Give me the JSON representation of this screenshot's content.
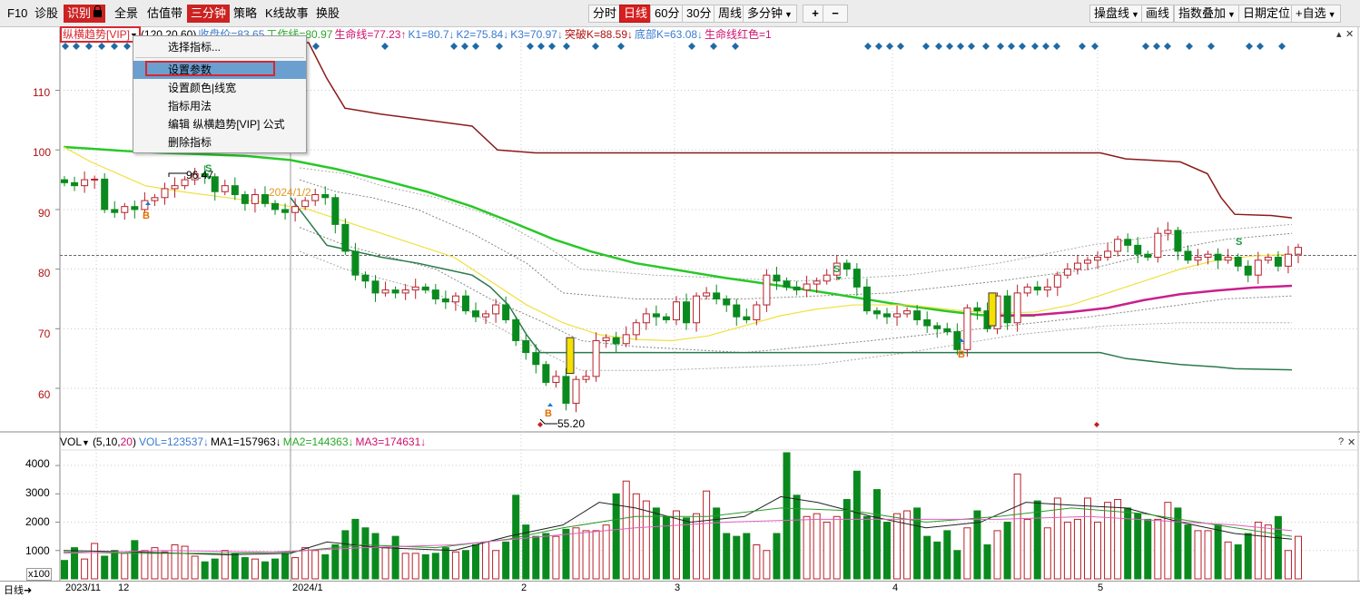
{
  "toolbar": {
    "left_items": [
      "F10",
      "诊股",
      "识别",
      "全景",
      "估值带",
      "三分钟",
      "策略",
      "K线故事",
      "换股"
    ],
    "period_tabs": [
      "分时",
      "日线",
      "60分",
      "30分",
      "周线",
      "多分钟"
    ],
    "zoom_in": "+",
    "zoom_out": "−",
    "right_items": [
      "操盘线",
      "画线",
      "指数叠加",
      "日期定位",
      "+自选"
    ]
  },
  "indicator": {
    "name": "纵横趋势[VIP]",
    "params": "(120,20,60)",
    "close_label": "收盘价=83.65",
    "hidden_text": "工作线=80.97",
    "life_line": "生命线=77.23↑",
    "k1": "K1=80.7↓",
    "k2": "K2=75.84↓",
    "k3": "K3=70.97↓",
    "breakout": "突破K=88.59↓",
    "bottom": "底部K=63.08↓",
    "life_red": "生命线红色=1"
  },
  "context_menu": {
    "items": [
      "选择指标...",
      "设置参数",
      "设置颜色|线宽",
      "指标用法",
      "编辑 纵横趋势[VIP] 公式",
      "删除指标"
    ],
    "highlighted": "设置参数"
  },
  "price_axis": {
    "labels": [
      "110",
      "100",
      "90",
      "80",
      "70",
      "60"
    ]
  },
  "annotations": {
    "high_value": "96.47",
    "low_value": "55.20",
    "date_marker": "2024/1/2",
    "buy_mark": "B",
    "sell_mark": "S"
  },
  "volume": {
    "name": "VOL",
    "params_prefix": "(5,10,",
    "params_last": "20",
    "params_suffix": ")",
    "vol": "VOL=123537↓",
    "ma1": "MA1=157963↓",
    "ma2": "MA2=144363↓",
    "ma3": "MA3=174631↓",
    "axis_labels": [
      "4000",
      "3000",
      "2000",
      "1000"
    ],
    "unit": "x100"
  },
  "date_axis": {
    "period_label": "日线",
    "labels": [
      "2023/11",
      "12",
      "2024/1",
      "2",
      "3",
      "4",
      "5"
    ]
  },
  "colors": {
    "up": "#b8202a",
    "down": "#0a8a1e",
    "upper_band": "#8b1a1a",
    "lower_band": "#2b7a4b",
    "life_line": "#28c828",
    "yellow_line": "#f0e040",
    "magenta_line": "#c8208c",
    "signal": "#1f6aa5",
    "axis_text": "#b01010"
  },
  "chart_data": {
    "type": "candlestick",
    "price_range": [
      53,
      118
    ],
    "closes": [
      94.5,
      94.0,
      95.0,
      95.1,
      90.0,
      89.5,
      90.5,
      90.0,
      91.5,
      92.0,
      93.5,
      94.0,
      95.0,
      96.0,
      95.5,
      93.0,
      94.0,
      92.5,
      91.0,
      92.5,
      91.0,
      90.0,
      89.5,
      90.5,
      91.5,
      92.5,
      92.0,
      87.5,
      83.0,
      79.0,
      78.0,
      76.0,
      76.5,
      76.0,
      76.5,
      77.0,
      76.5,
      75.0,
      74.5,
      75.5,
      73.0,
      72.0,
      72.5,
      74.0,
      71.5,
      68.0,
      66.0,
      64.0,
      61.0,
      62.0,
      57.5,
      61.5,
      62.0,
      68.0,
      68.5,
      67.5,
      69.0,
      71.0,
      72.5,
      72.0,
      71.5,
      74.5,
      71.0,
      75.5,
      76.0,
      75.0,
      74.0,
      72.0,
      71.5,
      74.0,
      79.0,
      78.0,
      77.0,
      76.5,
      77.5,
      78.0,
      79.0,
      81.0,
      80.0,
      77.0,
      73.0,
      72.5,
      72.0,
      72.5,
      73.0,
      71.5,
      70.5,
      70.0,
      69.5,
      66.5,
      73.5,
      73.0,
      70.0,
      75.5,
      71.0,
      76.0,
      77.0,
      76.5,
      77.0,
      79.0,
      80.0,
      81.0,
      81.5,
      82.0,
      83.0,
      85.0,
      84.0,
      82.5,
      82.0,
      86.0,
      86.5,
      83.0,
      81.5,
      82.0,
      82.5,
      81.5,
      82.0,
      80.5,
      79.0,
      81.5,
      82.0,
      80.5,
      82.5,
      83.65
    ],
    "volumes": [
      650,
      1100,
      700,
      1250,
      800,
      1000,
      900,
      1350,
      1000,
      1100,
      950,
      1200,
      1150,
      800,
      600,
      700,
      1000,
      900,
      750,
      700,
      600,
      700,
      900,
      750,
      1100,
      1000,
      850,
      1200,
      1700,
      2100,
      1800,
      1600,
      1100,
      1500,
      900,
      900,
      850,
      900,
      1100,
      950,
      1000,
      1200,
      1300,
      1000,
      1300,
      2950,
      1900,
      1500,
      1600,
      1500,
      1750,
      1800,
      1700,
      1700,
      1900,
      3000,
      3450,
      3000,
      2750,
      2500,
      2200,
      2400,
      2150,
      2300,
      3100,
      2500,
      1600,
      1500,
      1600,
      1200,
      1000,
      1600,
      4450,
      2950,
      2200,
      2300,
      2000,
      2200,
      2800,
      3800,
      2200,
      3150,
      2000,
      2300,
      2400,
      2500,
      1500,
      1300,
      1700,
      1000,
      1800,
      2400,
      1200,
      1700,
      2000,
      3700,
      2100,
      2750,
      1800,
      2850,
      2000,
      2100,
      2850,
      2000,
      2700,
      2800,
      2500,
      2300,
      2100,
      2100,
      2700,
      2500,
      1900,
      1700,
      1700,
      1900,
      1300,
      1200,
      1600,
      2000,
      1900,
      2200,
      1000,
      1500,
      1235
    ]
  }
}
